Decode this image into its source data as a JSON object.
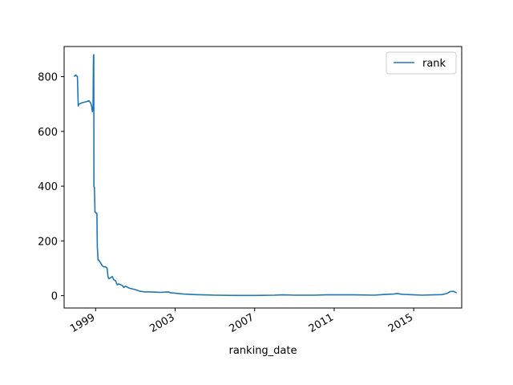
{
  "chart_data": {
    "type": "line",
    "title": "",
    "xlabel": "ranking_date",
    "ylabel": "",
    "xlim": [
      "1997-06-01",
      "2017-06-01"
    ],
    "ylim": [
      -45,
      910
    ],
    "grid": false,
    "legend": {
      "placement": "top-right",
      "entries": [
        "rank"
      ]
    },
    "x_ticks": [
      "1999",
      "2003",
      "2007",
      "2011",
      "2015"
    ],
    "y_ticks": [
      0,
      200,
      400,
      600,
      800
    ],
    "series": [
      {
        "name": "rank",
        "color": "#1f77b4",
        "points": [
          [
            "1997-12-01",
            800
          ],
          [
            "1998-01-01",
            806
          ],
          [
            "1998-02-01",
            800
          ],
          [
            "1998-02-15",
            693
          ],
          [
            "1998-03-01",
            700
          ],
          [
            "1998-05-01",
            705
          ],
          [
            "1998-07-01",
            708
          ],
          [
            "1998-09-01",
            712
          ],
          [
            "1998-10-01",
            704
          ],
          [
            "1998-10-20",
            690
          ],
          [
            "1998-11-01",
            672
          ],
          [
            "1998-11-15",
            690
          ],
          [
            "1998-11-22",
            875
          ],
          [
            "1998-11-28",
            880
          ],
          [
            "1998-12-01",
            398
          ],
          [
            "1998-12-10",
            395
          ],
          [
            "1998-12-20",
            305
          ],
          [
            "1999-01-01",
            305
          ],
          [
            "1999-01-15",
            300
          ],
          [
            "1999-01-25",
            300
          ],
          [
            "1999-02-01",
            180
          ],
          [
            "1999-02-15",
            130
          ],
          [
            "1999-03-01",
            130
          ],
          [
            "1999-04-01",
            120
          ],
          [
            "1999-05-01",
            110
          ],
          [
            "1999-06-01",
            105
          ],
          [
            "1999-07-01",
            106
          ],
          [
            "1999-08-01",
            100
          ],
          [
            "1999-08-15",
            70
          ],
          [
            "1999-09-01",
            62
          ],
          [
            "1999-10-01",
            65
          ],
          [
            "1999-11-01",
            70
          ],
          [
            "1999-12-01",
            58
          ],
          [
            "2000-01-01",
            55
          ],
          [
            "2000-02-01",
            40
          ],
          [
            "2000-03-01",
            43
          ],
          [
            "2000-05-01",
            38
          ],
          [
            "2000-06-01",
            30
          ],
          [
            "2000-07-01",
            35
          ],
          [
            "2000-09-01",
            28
          ],
          [
            "2000-11-01",
            25
          ],
          [
            "2001-01-01",
            22
          ],
          [
            "2001-04-01",
            16
          ],
          [
            "2001-07-01",
            14
          ],
          [
            "2001-10-01",
            14
          ],
          [
            "2002-01-01",
            13
          ],
          [
            "2002-04-01",
            12
          ],
          [
            "2002-07-01",
            13
          ],
          [
            "2002-09-01",
            14
          ],
          [
            "2002-10-01",
            11
          ],
          [
            "2003-01-01",
            9
          ],
          [
            "2003-06-01",
            6
          ],
          [
            "2004-01-01",
            4
          ],
          [
            "2004-06-01",
            3
          ],
          [
            "2005-01-01",
            2
          ],
          [
            "2006-01-01",
            1
          ],
          [
            "2007-01-01",
            1
          ],
          [
            "2008-01-01",
            2
          ],
          [
            "2008-06-01",
            3
          ],
          [
            "2009-01-01",
            2
          ],
          [
            "2010-01-01",
            2
          ],
          [
            "2010-08-01",
            3
          ],
          [
            "2011-01-01",
            3
          ],
          [
            "2012-01-01",
            3
          ],
          [
            "2013-01-01",
            2
          ],
          [
            "2013-06-01",
            4
          ],
          [
            "2014-01-01",
            6
          ],
          [
            "2014-03-01",
            8
          ],
          [
            "2014-06-01",
            5
          ],
          [
            "2015-01-01",
            3
          ],
          [
            "2015-06-01",
            2
          ],
          [
            "2016-01-01",
            3
          ],
          [
            "2016-06-01",
            4
          ],
          [
            "2016-09-01",
            8
          ],
          [
            "2016-11-01",
            15
          ],
          [
            "2017-01-01",
            16
          ],
          [
            "2017-03-01",
            10
          ]
        ]
      }
    ]
  }
}
